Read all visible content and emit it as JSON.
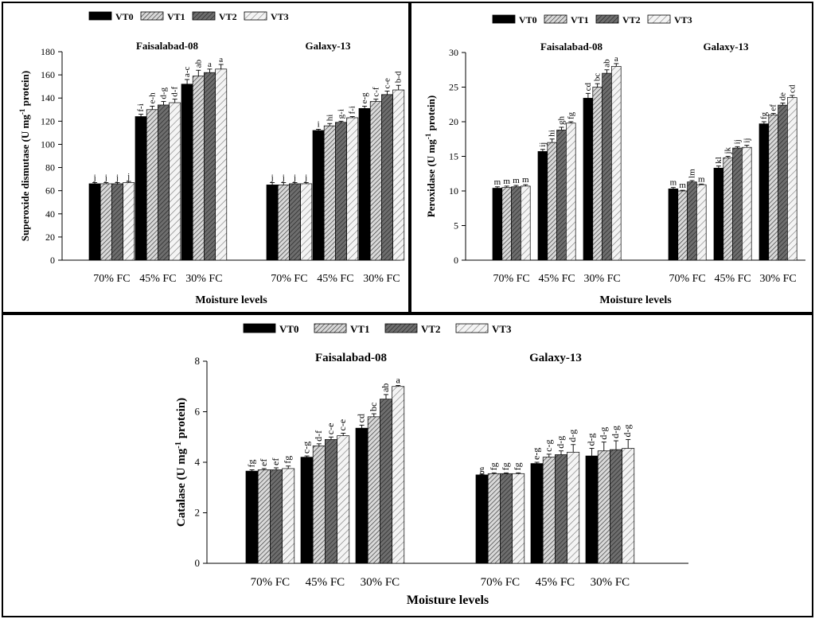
{
  "legend": [
    "VT0",
    "VT1",
    "VT2",
    "VT3"
  ],
  "series_fills": [
    "#000000",
    "pattern-vt1",
    "pattern-vt2",
    "pattern-vt3"
  ],
  "chart_data": [
    {
      "type": "bar",
      "id": "sod",
      "ylabel_main": "Superoxide dismutase (U mg",
      "ylabel_sup": "-1",
      "ylabel_end": " protein)",
      "xlabel": "Moisture levels",
      "ylim": [
        0,
        180
      ],
      "yticks": [
        0,
        20,
        40,
        60,
        80,
        100,
        120,
        140,
        160,
        180
      ],
      "groups": [
        "Faisalabad-08",
        "Galaxy-13"
      ],
      "categories": [
        "70% FC",
        "45% FC",
        "30% FC"
      ],
      "values": [
        [
          [
            66,
            66,
            66,
            67
          ],
          [
            124,
            130,
            134,
            136
          ],
          [
            152,
            159,
            162,
            165
          ]
        ],
        [
          [
            65,
            65,
            66,
            66
          ],
          [
            112,
            116,
            119,
            123
          ],
          [
            131,
            137,
            143,
            147
          ]
        ]
      ],
      "errors": [
        [
          [
            1,
            1,
            1,
            1
          ],
          [
            2,
            3,
            3,
            3
          ],
          [
            4,
            5,
            3,
            4
          ]
        ],
        [
          [
            2,
            2,
            1,
            1
          ],
          [
            1,
            2,
            1,
            1
          ],
          [
            2,
            2,
            3,
            4
          ]
        ]
      ],
      "letters": [
        [
          [
            "j",
            "j",
            "j",
            "j"
          ],
          [
            "f-i",
            "e-h",
            "d-g",
            "d-f"
          ],
          [
            "a-c",
            "ab",
            "a",
            "a"
          ]
        ],
        [
          [
            "j",
            "j",
            "j",
            "j"
          ],
          [
            "i",
            "hi",
            "g-i",
            "f-i"
          ],
          [
            "e-g",
            "c-f",
            "c-e",
            "b-d"
          ]
        ]
      ]
    },
    {
      "type": "bar",
      "id": "pod",
      "ylabel_main": "Peroxidase (U mg",
      "ylabel_sup": "-1",
      "ylabel_end": " protein)",
      "xlabel": "Moisture levels",
      "ylim": [
        0,
        30
      ],
      "yticks": [
        0,
        5,
        10,
        15,
        20,
        25,
        30
      ],
      "groups": [
        "Faisalabad-08",
        "Galaxy-13"
      ],
      "categories": [
        "70% FC",
        "45% FC",
        "30% FC"
      ],
      "values": [
        [
          [
            10.4,
            10.5,
            10.6,
            10.7
          ],
          [
            15.7,
            17.0,
            18.8,
            19.8
          ],
          [
            23.4,
            25.0,
            27.0,
            28.0
          ]
        ],
        [
          [
            10.3,
            10.0,
            11.3,
            10.9
          ],
          [
            13.3,
            14.8,
            16.2,
            16.3
          ],
          [
            19.7,
            21.0,
            22.4,
            23.5
          ]
        ]
      ],
      "errors": [
        [
          [
            0.2,
            0.2,
            0.2,
            0.2
          ],
          [
            0.3,
            0.5,
            0.4,
            0.2
          ],
          [
            0.7,
            0.5,
            0.5,
            0.4
          ]
        ],
        [
          [
            0.2,
            0.1,
            0.2,
            0.1
          ],
          [
            0.3,
            0.2,
            0.2,
            0.3
          ],
          [
            0.3,
            0.2,
            0.3,
            0.3
          ]
        ]
      ],
      "letters": [
        [
          [
            "m",
            "m",
            "m",
            "m"
          ],
          [
            "ij",
            "hi",
            "gh",
            "fg"
          ],
          [
            "cd",
            "bc",
            "ab",
            "a"
          ]
        ],
        [
          [
            "m",
            "m",
            "lm",
            "m"
          ],
          [
            "kl",
            "jk",
            "ij",
            "ij"
          ],
          [
            "fg",
            "ef",
            "de",
            "cd"
          ]
        ]
      ]
    },
    {
      "type": "bar",
      "id": "cat",
      "ylabel_main": "Catalase (U mg",
      "ylabel_sup": "-1",
      "ylabel_end": " protein)",
      "xlabel": "Moisture levels",
      "ylim": [
        0,
        8
      ],
      "yticks": [
        0,
        2,
        4,
        6,
        8
      ],
      "groups": [
        "Faisalabad-08",
        "Galaxy-13"
      ],
      "categories": [
        "70% FC",
        "45% FC",
        "30% FC"
      ],
      "values": [
        [
          [
            3.65,
            3.7,
            3.7,
            3.75
          ],
          [
            4.2,
            4.65,
            4.9,
            5.05
          ],
          [
            5.35,
            5.8,
            6.5,
            7.0
          ]
        ],
        [
          [
            3.5,
            3.55,
            3.55,
            3.55
          ],
          [
            3.95,
            4.2,
            4.3,
            4.4
          ],
          [
            4.25,
            4.45,
            4.5,
            4.55
          ]
        ]
      ],
      "errors": [
        [
          [
            0.05,
            0.05,
            0.08,
            0.1
          ],
          [
            0.05,
            0.08,
            0.1,
            0.1
          ],
          [
            0.12,
            0.12,
            0.18,
            0.04
          ]
        ],
        [
          [
            0.03,
            0.03,
            0.03,
            0.03
          ],
          [
            0.05,
            0.12,
            0.15,
            0.3
          ],
          [
            0.3,
            0.35,
            0.35,
            0.35
          ]
        ]
      ],
      "letters": [
        [
          [
            "fg",
            "ef",
            "ef",
            "fg"
          ],
          [
            "c-g",
            "d-f",
            "c-e",
            "c-e"
          ],
          [
            "cd",
            "bc",
            "ab",
            "a"
          ]
        ],
        [
          [
            "g",
            "fg",
            "fg",
            "fg"
          ],
          [
            "e-g",
            "c-g",
            "d-g",
            "d-g"
          ],
          [
            "d-g",
            "d-g",
            "d-g",
            "d-g"
          ]
        ]
      ]
    }
  ]
}
